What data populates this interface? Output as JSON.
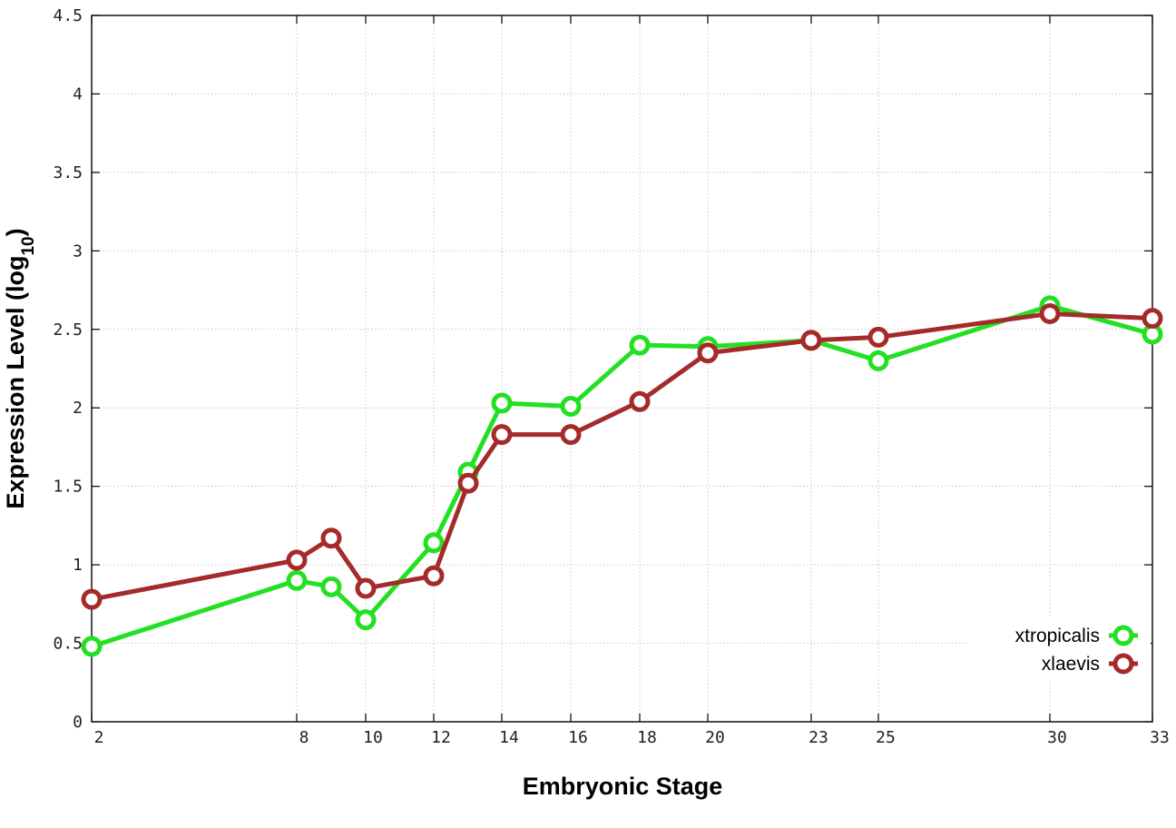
{
  "chart_data": {
    "type": "line",
    "xlabel": "Embryonic Stage",
    "ylabel_main": "Expression Level (log",
    "ylabel_sub": "10",
    "ylabel_close": ")",
    "ylim": [
      0,
      4.5
    ],
    "y_ticks": [
      0,
      0.5,
      1,
      1.5,
      2,
      2.5,
      3,
      3.5,
      4,
      4.5
    ],
    "y_tick_labels": [
      "0",
      "0.5",
      "1",
      "1.5",
      "2",
      "2.5",
      "3",
      "3.5",
      "4",
      "4.5"
    ],
    "x_ticks": [
      2,
      8,
      10,
      12,
      14,
      16,
      18,
      20,
      23,
      25,
      30,
      33
    ],
    "x_tick_labels": [
      "2",
      "8",
      "10",
      "12",
      "14",
      "16",
      "18",
      "20",
      "23",
      "25",
      "30",
      "33"
    ],
    "x_scale": "categorical-uneven",
    "grid": true,
    "legend_position": "bottom-right",
    "series": [
      {
        "name": "xtropicalis",
        "color": "#22e022",
        "marker": "open-circle",
        "x": [
          "2",
          "8",
          "9",
          "10",
          "12",
          "13",
          "14",
          "16",
          "18",
          "20",
          "23",
          "25",
          "30",
          "33"
        ],
        "values": [
          0.48,
          0.9,
          0.86,
          0.65,
          1.14,
          1.59,
          2.03,
          2.01,
          2.4,
          2.39,
          2.43,
          2.3,
          2.65,
          2.47
        ]
      },
      {
        "name": "xlaevis",
        "color": "#a52a2a",
        "marker": "open-circle",
        "x": [
          "2",
          "8",
          "9",
          "10",
          "12",
          "13",
          "14",
          "16",
          "18",
          "20",
          "23",
          "25",
          "30",
          "33"
        ],
        "values": [
          0.78,
          1.03,
          1.17,
          0.85,
          0.93,
          1.52,
          1.83,
          1.83,
          2.04,
          2.35,
          2.43,
          2.45,
          2.6,
          2.57
        ]
      }
    ]
  }
}
